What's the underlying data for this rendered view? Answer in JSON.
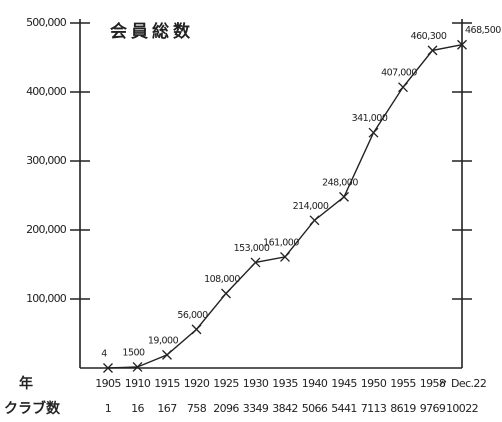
{
  "chart_data": {
    "type": "line",
    "title": "会員総数",
    "categories": [
      "1905",
      "1910",
      "1915",
      "1920",
      "1925",
      "1930",
      "1935",
      "1940",
      "1945",
      "1950",
      "1955",
      "1958",
      "〃 Dec.22"
    ],
    "values": [
      4,
      1500,
      19000,
      56000,
      108000,
      153000,
      161000,
      214000,
      248000,
      341000,
      407000,
      460300,
      468500
    ],
    "value_labels": [
      "4",
      "1500",
      "19,000",
      "56,000",
      "108,000",
      "153,000",
      "161,000",
      "214,000",
      "248,000",
      "341,000",
      "407,000",
      "460,300",
      "468,500"
    ],
    "ylim": [
      0,
      500000
    ],
    "yticks": [
      {
        "value": 100000,
        "label": "100,000"
      },
      {
        "value": 200000,
        "label": "200,000"
      },
      {
        "value": 300000,
        "label": "300,000"
      },
      {
        "value": 400000,
        "label": "400,000"
      },
      {
        "value": 500000,
        "label": "500,000"
      }
    ],
    "color": "#222222",
    "year_row_label": "年",
    "club_row_label": "クラブ数",
    "club_counts": [
      1,
      16,
      167,
      758,
      2096,
      3349,
      3842,
      5066,
      5441,
      7113,
      8619,
      9769,
      10022
    ]
  }
}
